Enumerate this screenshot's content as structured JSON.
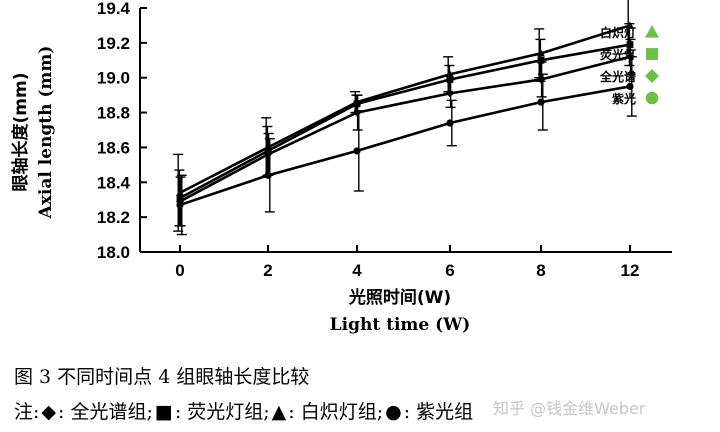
{
  "chart_data": {
    "type": "line",
    "categories": [
      "0",
      "2",
      "4",
      "6",
      "8",
      "12"
    ],
    "ylim": [
      18.0,
      19.4
    ],
    "yticks": [
      18.0,
      18.2,
      18.4,
      18.6,
      18.8,
      19.0,
      19.2,
      19.4
    ],
    "ylabel_cn": "眼轴长度(mm)",
    "ylabel_en": "Axial length (mm)",
    "xlabel_cn": "光照时间(W)",
    "xlabel_en": "Light time (W)",
    "legend_position": "top-right",
    "series": [
      {
        "name": "白炽灯",
        "marker": "triangle",
        "values": [
          18.34,
          18.6,
          18.86,
          19.02,
          19.14,
          19.3
        ],
        "error": [
          0.22,
          0.17,
          0.06,
          0.1,
          0.14,
          0.16
        ]
      },
      {
        "name": "荧光灯",
        "marker": "square",
        "values": [
          18.31,
          18.58,
          18.85,
          18.99,
          19.1,
          19.19
        ],
        "error": [
          0.16,
          0.14,
          0.05,
          0.08,
          0.12,
          0.12
        ]
      },
      {
        "name": "全光谱",
        "marker": "diamond",
        "values": [
          18.29,
          18.56,
          18.8,
          18.91,
          18.99,
          19.12
        ],
        "error": [
          0.14,
          0.12,
          0.1,
          0.08,
          0.1,
          0.1
        ]
      },
      {
        "name": "紫光",
        "marker": "circle",
        "values": [
          18.27,
          18.44,
          18.58,
          18.74,
          18.86,
          18.95
        ],
        "error": [
          0.17,
          0.21,
          0.23,
          0.13,
          0.16,
          0.17
        ]
      }
    ]
  },
  "legend_color": "#6dbf4a",
  "caption": {
    "title": "图 3 不同时间点 4 组眼轴长度比较",
    "note_prefix": "注:",
    "note_items": [
      {
        "symbol": "◆",
        "text": ": 全光谱组;"
      },
      {
        "symbol": "■",
        "text": ": 荧光灯组;"
      },
      {
        "symbol": "▲",
        "text": ": 白炽灯组;"
      },
      {
        "symbol": "●",
        "text": ": 紫光组"
      }
    ]
  },
  "watermark": "知乎 @钱金维Weber"
}
